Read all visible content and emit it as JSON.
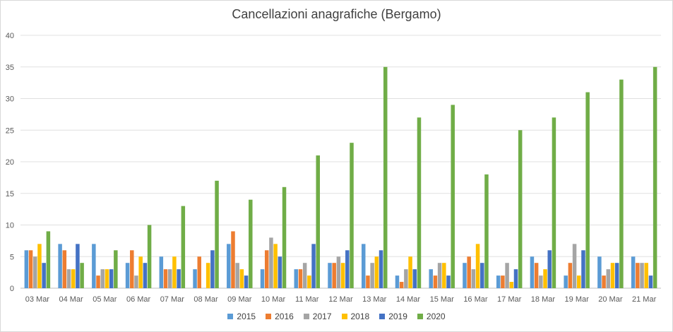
{
  "chart_data": {
    "type": "bar",
    "title": "Cancellazioni anagrafiche (Bergamo)",
    "xlabel": "",
    "ylabel": "",
    "ylim": [
      0,
      40
    ],
    "yticks": [
      0,
      5,
      10,
      15,
      20,
      25,
      30,
      35,
      40
    ],
    "grid": true,
    "legend_position": "bottom",
    "categories": [
      "03 Mar",
      "04 Mar",
      "05 Mar",
      "06 Mar",
      "07 Mar",
      "08 Mar",
      "09 Mar",
      "10 Mar",
      "11 Mar",
      "12 Mar",
      "13 Mar",
      "14 Mar",
      "15 Mar",
      "16 Mar",
      "17 Mar",
      "18 Mar",
      "19 Mar",
      "20 Mar",
      "21 Mar"
    ],
    "series": [
      {
        "name": "2015",
        "color": "#5B9BD5",
        "values": [
          6,
          7,
          7,
          4,
          5,
          3,
          7,
          3,
          3,
          4,
          7,
          2,
          3,
          4,
          2,
          5,
          2,
          5,
          5
        ]
      },
      {
        "name": "2016",
        "color": "#ED7D31",
        "values": [
          6,
          6,
          2,
          6,
          3,
          5,
          9,
          6,
          3,
          4,
          2,
          1,
          2,
          5,
          2,
          4,
          4,
          2,
          4
        ]
      },
      {
        "name": "2017",
        "color": "#A5A5A5",
        "values": [
          5,
          3,
          3,
          2,
          3,
          0,
          4,
          8,
          4,
          5,
          4,
          3,
          4,
          3,
          4,
          2,
          7,
          3,
          4
        ]
      },
      {
        "name": "2018",
        "color": "#FFC000",
        "values": [
          7,
          3,
          3,
          5,
          5,
          4,
          3,
          7,
          2,
          4,
          5,
          5,
          4,
          7,
          1,
          3,
          2,
          4,
          4
        ]
      },
      {
        "name": "2019",
        "color": "#4472C4",
        "values": [
          4,
          7,
          3,
          4,
          3,
          6,
          2,
          5,
          7,
          6,
          6,
          3,
          2,
          4,
          3,
          6,
          6,
          4,
          2
        ]
      },
      {
        "name": "2020",
        "color": "#70AD47",
        "values": [
          9,
          4,
          6,
          10,
          13,
          17,
          14,
          16,
          21,
          23,
          35,
          27,
          29,
          18,
          25,
          27,
          31,
          33,
          35
        ]
      }
    ]
  }
}
